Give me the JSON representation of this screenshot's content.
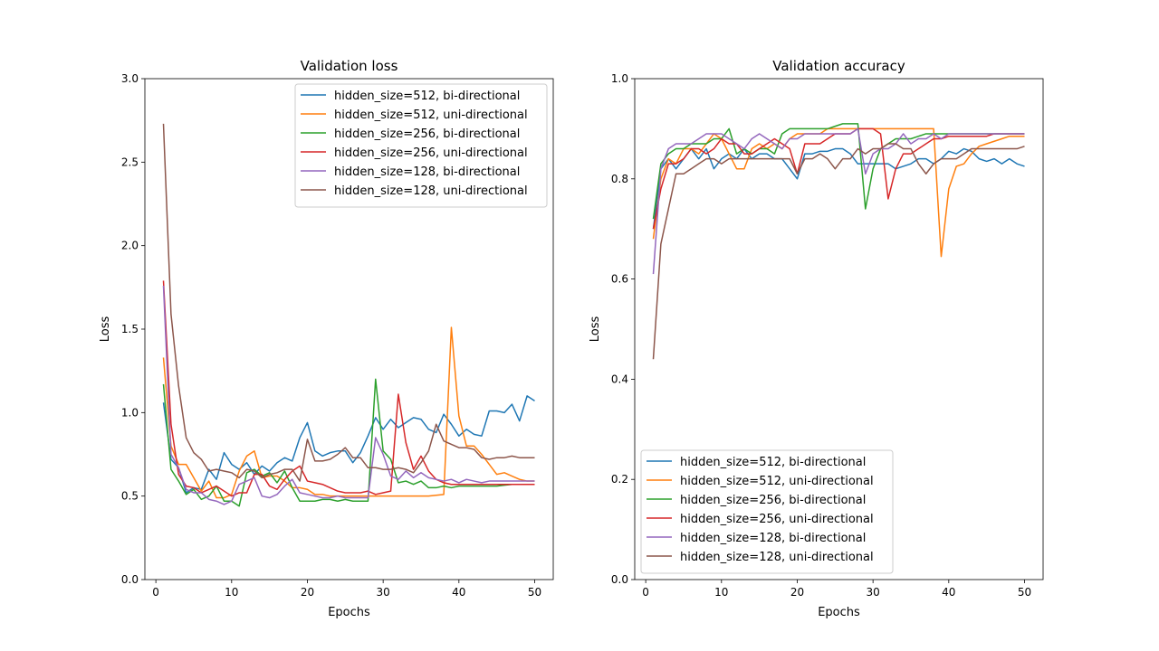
{
  "chart_data": [
    {
      "type": "line",
      "title": "Validation loss",
      "xlabel": "Epochs",
      "ylabel": "Loss",
      "xlim": [
        -1.45,
        52.45
      ],
      "ylim": [
        0,
        3.0
      ],
      "xticks": [
        0,
        10,
        20,
        30,
        40,
        50
      ],
      "yticks": [
        0.0,
        0.5,
        1.0,
        1.5,
        2.0,
        2.5,
        3.0
      ],
      "xtick_labels": [
        "0",
        "10",
        "20",
        "30",
        "40",
        "50"
      ],
      "ytick_labels": [
        "0.0",
        "0.5",
        "1.0",
        "1.5",
        "2.0",
        "2.5",
        "3.0"
      ],
      "legend_position": "top-right",
      "x": [
        1,
        2,
        3,
        4,
        5,
        6,
        7,
        8,
        9,
        10,
        11,
        12,
        13,
        14,
        15,
        16,
        17,
        18,
        19,
        20,
        21,
        22,
        23,
        24,
        25,
        26,
        27,
        28,
        29,
        30,
        31,
        32,
        33,
        34,
        35,
        36,
        37,
        38,
        39,
        40,
        41,
        42,
        43,
        44,
        45,
        46,
        47,
        48,
        49,
        50
      ],
      "series": [
        {
          "name": "hidden_size=512, bi-directional",
          "color": "#1f77b4",
          "values": [
            1.06,
            0.72,
            0.67,
            0.52,
            0.55,
            0.54,
            0.66,
            0.6,
            0.76,
            0.69,
            0.66,
            0.7,
            0.63,
            0.68,
            0.65,
            0.7,
            0.73,
            0.71,
            0.85,
            0.94,
            0.77,
            0.74,
            0.76,
            0.77,
            0.77,
            0.7,
            0.76,
            0.86,
            0.97,
            0.9,
            0.96,
            0.91,
            0.94,
            0.97,
            0.96,
            0.9,
            0.88,
            0.99,
            0.93,
            0.86,
            0.9,
            0.87,
            0.86,
            1.01,
            1.01,
            1.0,
            1.05,
            0.95,
            1.1,
            1.07
          ]
        },
        {
          "name": "hidden_size=512, uni-directional",
          "color": "#ff7f0e",
          "values": [
            1.33,
            0.8,
            0.69,
            0.69,
            0.61,
            0.53,
            0.59,
            0.49,
            0.49,
            0.51,
            0.65,
            0.74,
            0.77,
            0.61,
            0.62,
            0.62,
            0.59,
            0.55,
            0.55,
            0.54,
            0.51,
            0.51,
            0.5,
            0.5,
            0.5,
            0.5,
            0.5,
            0.5,
            0.5,
            0.5,
            0.5,
            0.5,
            0.5,
            0.5,
            0.5,
            0.5,
            0.505,
            0.51,
            1.51,
            0.98,
            0.8,
            0.8,
            0.75,
            0.69,
            0.63,
            0.64,
            0.62,
            0.6,
            0.59,
            0.59
          ]
        },
        {
          "name": "hidden_size=256, bi-directional",
          "color": "#2ca02c",
          "values": [
            1.17,
            0.66,
            0.59,
            0.51,
            0.54,
            0.48,
            0.5,
            0.56,
            0.47,
            0.47,
            0.44,
            0.64,
            0.66,
            0.62,
            0.64,
            0.58,
            0.65,
            0.55,
            0.47,
            0.47,
            0.47,
            0.48,
            0.48,
            0.47,
            0.48,
            0.47,
            0.47,
            0.47,
            1.2,
            0.77,
            0.72,
            0.58,
            0.59,
            0.57,
            0.59,
            0.55,
            0.55,
            0.56,
            0.55,
            0.56,
            0.56,
            0.56,
            0.56,
            0.56,
            0.56,
            0.565,
            0.57,
            0.57,
            0.57,
            0.57
          ]
        },
        {
          "name": "hidden_size=256, uni-directional",
          "color": "#d62728",
          "values": [
            1.79,
            0.93,
            0.63,
            0.56,
            0.55,
            0.52,
            0.54,
            0.56,
            0.53,
            0.5,
            0.52,
            0.52,
            0.63,
            0.63,
            0.56,
            0.54,
            0.6,
            0.65,
            0.68,
            0.59,
            0.58,
            0.57,
            0.55,
            0.53,
            0.52,
            0.52,
            0.52,
            0.53,
            0.51,
            0.52,
            0.53,
            1.11,
            0.82,
            0.66,
            0.74,
            0.65,
            0.6,
            0.58,
            0.57,
            0.57,
            0.57,
            0.57,
            0.57,
            0.57,
            0.57,
            0.57,
            0.57,
            0.57,
            0.57,
            0.57
          ]
        },
        {
          "name": "hidden_size=128, bi-directional",
          "color": "#9467bd",
          "values": [
            1.76,
            0.75,
            0.67,
            0.54,
            0.52,
            0.52,
            0.48,
            0.47,
            0.45,
            0.47,
            0.57,
            0.59,
            0.61,
            0.5,
            0.49,
            0.51,
            0.56,
            0.6,
            0.52,
            0.51,
            0.5,
            0.49,
            0.49,
            0.5,
            0.49,
            0.49,
            0.49,
            0.49,
            0.85,
            0.75,
            0.62,
            0.6,
            0.65,
            0.61,
            0.64,
            0.61,
            0.6,
            0.59,
            0.6,
            0.58,
            0.6,
            0.59,
            0.58,
            0.59,
            0.59,
            0.59,
            0.59,
            0.59,
            0.59,
            0.59
          ]
        },
        {
          "name": "hidden_size=128, uni-directional",
          "color": "#8c564b",
          "values": [
            2.73,
            1.59,
            1.16,
            0.85,
            0.76,
            0.72,
            0.65,
            0.66,
            0.65,
            0.64,
            0.61,
            0.66,
            0.65,
            0.61,
            0.63,
            0.64,
            0.66,
            0.66,
            0.59,
            0.84,
            0.71,
            0.71,
            0.72,
            0.75,
            0.79,
            0.73,
            0.73,
            0.67,
            0.67,
            0.66,
            0.66,
            0.67,
            0.66,
            0.64,
            0.7,
            0.77,
            0.93,
            0.83,
            0.81,
            0.79,
            0.79,
            0.78,
            0.73,
            0.72,
            0.73,
            0.73,
            0.74,
            0.73,
            0.73,
            0.73
          ]
        }
      ]
    },
    {
      "type": "line",
      "title": "Validation accuracy",
      "xlabel": "Epochs",
      "ylabel": "Loss",
      "xlim": [
        -1.45,
        52.45
      ],
      "ylim": [
        0,
        1.0
      ],
      "xticks": [
        0,
        10,
        20,
        30,
        40,
        50
      ],
      "yticks": [
        0.0,
        0.2,
        0.4,
        0.6,
        0.8,
        1.0
      ],
      "xtick_labels": [
        "0",
        "10",
        "20",
        "30",
        "40",
        "50"
      ],
      "ytick_labels": [
        "0.0",
        "0.2",
        "0.4",
        "0.6",
        "0.8",
        "1.0"
      ],
      "legend_position": "lower-left",
      "x": [
        1,
        2,
        3,
        4,
        5,
        6,
        7,
        8,
        9,
        10,
        11,
        12,
        13,
        14,
        15,
        16,
        17,
        18,
        19,
        20,
        21,
        22,
        23,
        24,
        25,
        26,
        27,
        28,
        29,
        30,
        31,
        32,
        33,
        34,
        35,
        36,
        37,
        38,
        39,
        40,
        41,
        42,
        43,
        44,
        45,
        46,
        47,
        48,
        49,
        50
      ],
      "series": [
        {
          "name": "hidden_size=512, bi-directional",
          "color": "#1f77b4",
          "values": [
            0.7,
            0.82,
            0.84,
            0.82,
            0.84,
            0.86,
            0.84,
            0.86,
            0.82,
            0.84,
            0.85,
            0.84,
            0.86,
            0.84,
            0.85,
            0.85,
            0.84,
            0.84,
            0.82,
            0.8,
            0.85,
            0.85,
            0.855,
            0.855,
            0.86,
            0.86,
            0.85,
            0.83,
            0.83,
            0.83,
            0.83,
            0.83,
            0.82,
            0.825,
            0.83,
            0.84,
            0.84,
            0.83,
            0.84,
            0.855,
            0.85,
            0.86,
            0.855,
            0.84,
            0.835,
            0.84,
            0.83,
            0.84,
            0.83,
            0.825
          ]
        },
        {
          "name": "hidden_size=512, uni-directional",
          "color": "#ff7f0e",
          "values": [
            0.68,
            0.8,
            0.84,
            0.83,
            0.86,
            0.86,
            0.85,
            0.87,
            0.89,
            0.88,
            0.85,
            0.82,
            0.82,
            0.86,
            0.87,
            0.86,
            0.87,
            0.86,
            0.88,
            0.89,
            0.89,
            0.89,
            0.89,
            0.9,
            0.9,
            0.9,
            0.9,
            0.9,
            0.9,
            0.9,
            0.9,
            0.9,
            0.9,
            0.9,
            0.9,
            0.9,
            0.9,
            0.9,
            0.645,
            0.78,
            0.825,
            0.83,
            0.85,
            0.865,
            0.87,
            0.875,
            0.88,
            0.885,
            0.885,
            0.885
          ]
        },
        {
          "name": "hidden_size=256, bi-directional",
          "color": "#2ca02c",
          "values": [
            0.72,
            0.83,
            0.85,
            0.86,
            0.86,
            0.87,
            0.87,
            0.87,
            0.88,
            0.88,
            0.9,
            0.85,
            0.86,
            0.85,
            0.86,
            0.86,
            0.85,
            0.89,
            0.9,
            0.9,
            0.9,
            0.9,
            0.9,
            0.9,
            0.905,
            0.91,
            0.91,
            0.91,
            0.74,
            0.82,
            0.86,
            0.87,
            0.88,
            0.88,
            0.88,
            0.885,
            0.89,
            0.89,
            0.89,
            0.89,
            0.89,
            0.89,
            0.89,
            0.89,
            0.89,
            0.89,
            0.89,
            0.89,
            0.89,
            0.89
          ]
        },
        {
          "name": "hidden_size=256, uni-directional",
          "color": "#d62728",
          "values": [
            0.7,
            0.78,
            0.83,
            0.83,
            0.84,
            0.86,
            0.86,
            0.85,
            0.86,
            0.88,
            0.87,
            0.87,
            0.85,
            0.85,
            0.86,
            0.87,
            0.88,
            0.87,
            0.86,
            0.81,
            0.87,
            0.87,
            0.87,
            0.88,
            0.89,
            0.89,
            0.89,
            0.9,
            0.9,
            0.9,
            0.89,
            0.76,
            0.82,
            0.85,
            0.85,
            0.86,
            0.87,
            0.88,
            0.88,
            0.885,
            0.885,
            0.885,
            0.885,
            0.885,
            0.885,
            0.89,
            0.89,
            0.89,
            0.89,
            0.89
          ]
        },
        {
          "name": "hidden_size=128, bi-directional",
          "color": "#9467bd",
          "values": [
            0.61,
            0.82,
            0.86,
            0.87,
            0.87,
            0.87,
            0.88,
            0.89,
            0.89,
            0.89,
            0.88,
            0.87,
            0.86,
            0.88,
            0.89,
            0.88,
            0.87,
            0.86,
            0.88,
            0.88,
            0.89,
            0.89,
            0.89,
            0.89,
            0.89,
            0.89,
            0.89,
            0.9,
            0.81,
            0.85,
            0.86,
            0.86,
            0.87,
            0.89,
            0.87,
            0.88,
            0.88,
            0.89,
            0.88,
            0.89,
            0.89,
            0.89,
            0.89,
            0.89,
            0.89,
            0.89,
            0.89,
            0.89,
            0.89,
            0.89
          ]
        },
        {
          "name": "hidden_size=128, uni-directional",
          "color": "#8c564b",
          "values": [
            0.44,
            0.67,
            0.74,
            0.81,
            0.81,
            0.82,
            0.83,
            0.84,
            0.84,
            0.83,
            0.84,
            0.84,
            0.84,
            0.84,
            0.84,
            0.84,
            0.84,
            0.84,
            0.84,
            0.81,
            0.84,
            0.84,
            0.85,
            0.84,
            0.82,
            0.84,
            0.84,
            0.86,
            0.85,
            0.86,
            0.86,
            0.87,
            0.87,
            0.86,
            0.86,
            0.83,
            0.81,
            0.83,
            0.84,
            0.84,
            0.84,
            0.85,
            0.86,
            0.86,
            0.86,
            0.86,
            0.86,
            0.86,
            0.86,
            0.865
          ]
        }
      ]
    }
  ]
}
